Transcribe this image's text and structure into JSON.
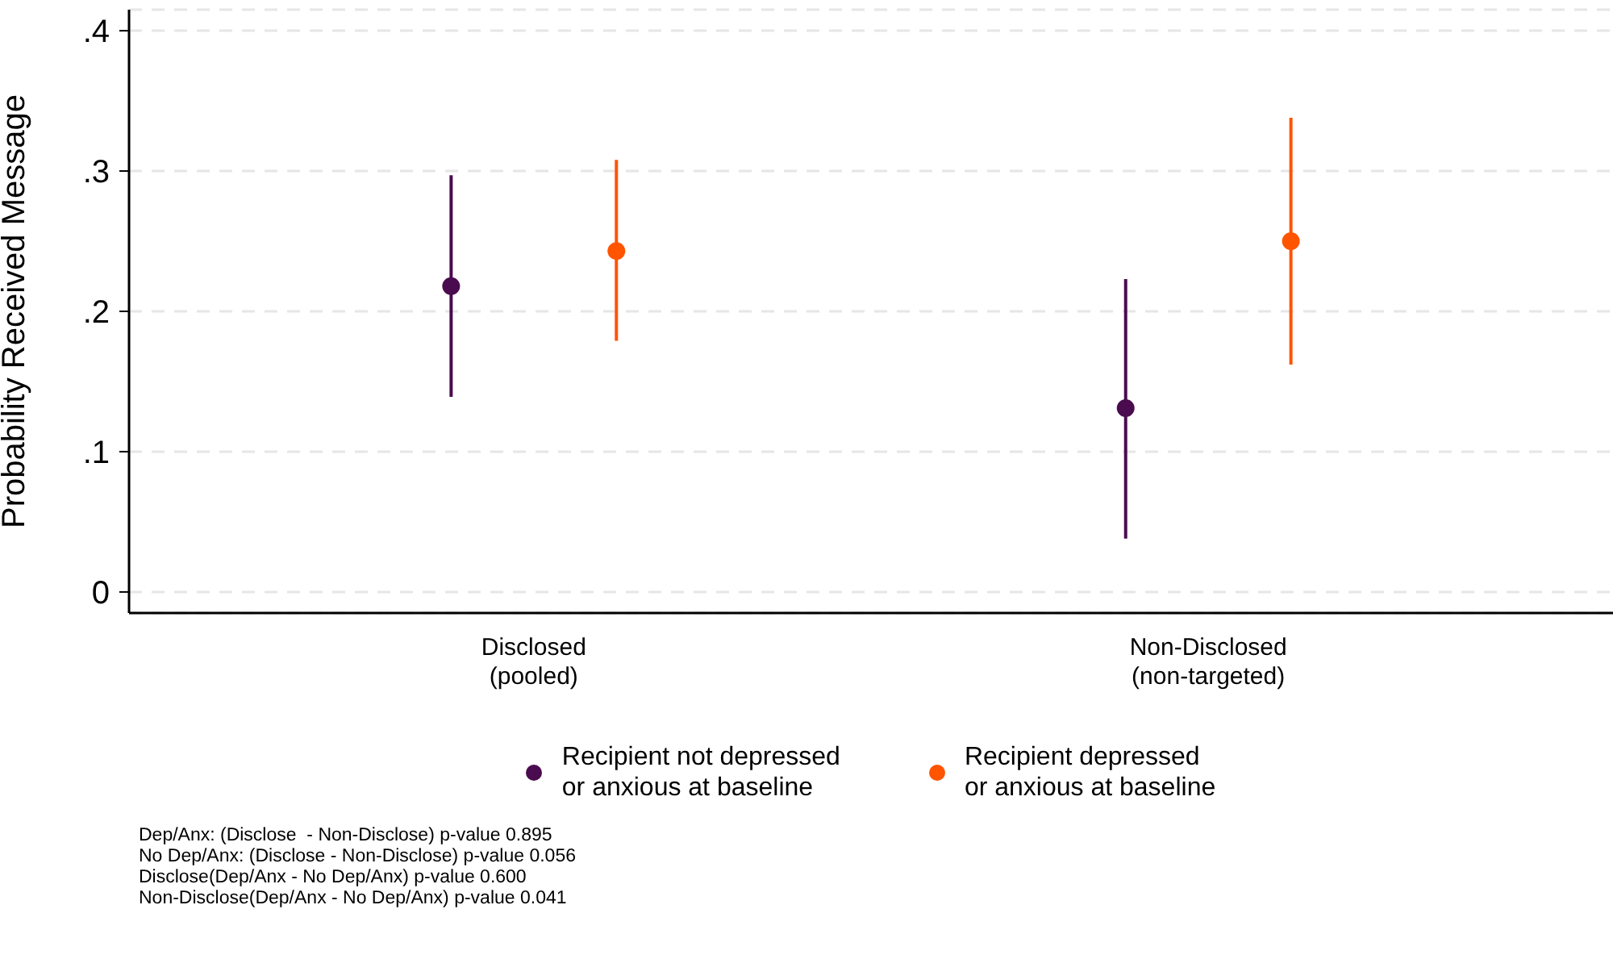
{
  "chart_data": {
    "type": "scatter",
    "ylabel": "Probability Received Message",
    "categories": [
      "Disclosed\n(pooled)",
      "Non-Disclosed\n(non-targeted)"
    ],
    "series": [
      {
        "name": "Recipient not depressed\nor anxious at baseline",
        "color": "#4a0c4e",
        "x": [
          "Disclosed\n(pooled)",
          "Non-Disclosed\n(non-targeted)"
        ],
        "values": [
          0.218,
          0.131
        ],
        "errors": [
          [
            0.139,
            0.297
          ],
          [
            0.038,
            0.223
          ]
        ]
      },
      {
        "name": "Recipient depressed\nor anxious at baseline",
        "color": "#ff5400",
        "x": [
          "Disclosed\n(pooled)",
          "Non-Disclosed\n(non-targeted)"
        ],
        "values": [
          0.243,
          0.25
        ],
        "errors": [
          [
            0.179,
            0.308
          ],
          [
            0.162,
            0.338
          ]
        ]
      }
    ],
    "ylim": [
      -0.015,
      0.415
    ],
    "yticks": [
      {
        "value": 0,
        "label": "0"
      },
      {
        "value": 0.1,
        "label": ".1"
      },
      {
        "value": 0.2,
        "label": ".2"
      },
      {
        "value": 0.3,
        "label": ".3"
      },
      {
        "value": 0.4,
        "label": ".4"
      }
    ],
    "grid": "y",
    "legend": "bottom",
    "marker": "circle",
    "annotations": [
      "Dep/Anx: (Disclose  - Non-Disclose) p-value 0.895",
      "No Dep/Anx: (Disclose - Non-Disclose) p-value 0.056",
      "Disclose(Dep/Anx - No Dep/Anx) p-value 0.600",
      "Non-Disclose(Dep/Anx - No Dep/Anx) p-value 0.041"
    ]
  }
}
